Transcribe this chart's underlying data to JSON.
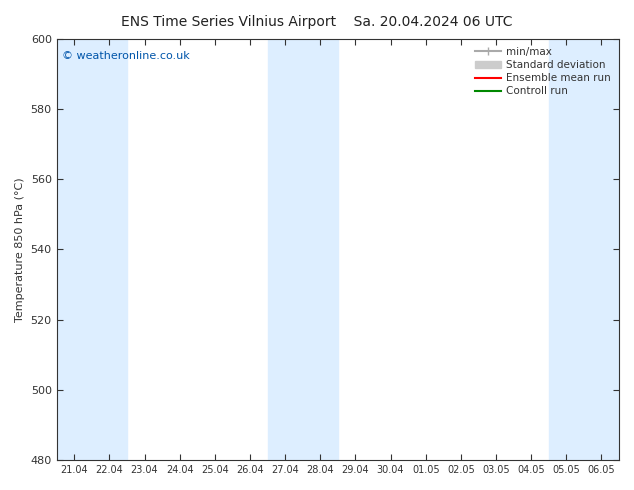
{
  "title": "ENS Time Series Vilnius Airport",
  "title2": "Sa. 20.04.2024 06 UTC",
  "ylabel": "Temperature 850 hPa (°C)",
  "ylim": [
    480,
    600
  ],
  "yticks": [
    480,
    500,
    520,
    540,
    560,
    580,
    600
  ],
  "x_labels": [
    "21.04",
    "22.04",
    "23.04",
    "24.04",
    "25.04",
    "26.04",
    "27.04",
    "28.04",
    "29.04",
    "30.04",
    "01.05",
    "02.05",
    "03.05",
    "04.05",
    "05.05",
    "06.05"
  ],
  "n_days": 16,
  "shaded_days": [
    0,
    1,
    6,
    7,
    14,
    15
  ],
  "shade_color": "#ddeeff",
  "bg_color": "#ffffff",
  "watermark": "© weatheronline.co.uk",
  "watermark_color": "#0055aa",
  "legend_minmax_color": "#aaaaaa",
  "legend_std_color": "#cccccc",
  "legend_mean_color": "#ff0000",
  "legend_control_color": "#008800",
  "tick_color": "#333333",
  "axis_color": "#333333",
  "figsize": [
    6.34,
    4.9
  ],
  "dpi": 100
}
